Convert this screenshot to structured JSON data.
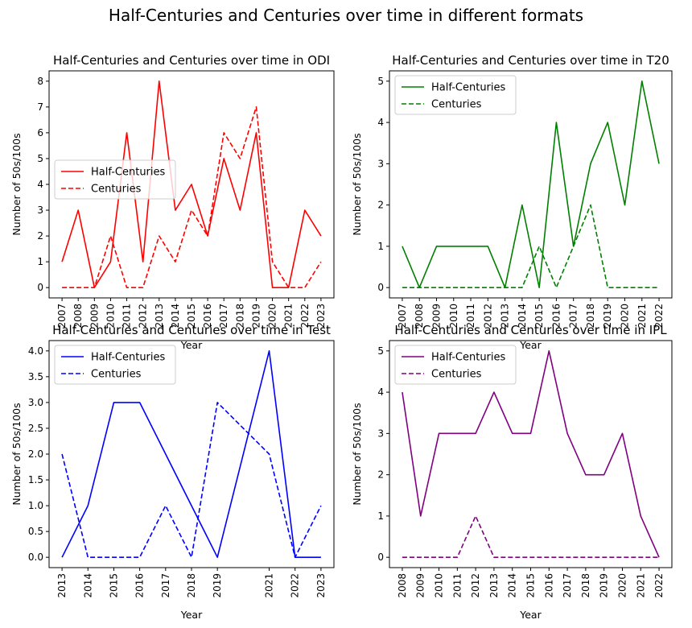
{
  "figure": {
    "suptitle": "Half-Centuries and Centuries over time in different formats"
  },
  "chart_data": [
    {
      "type": "line",
      "title": "Half-Centuries and Centuries over time in ODI",
      "xlabel": "Year",
      "ylabel": "Number of 50s/100s",
      "color": "#ff0000",
      "x": [
        "2007",
        "2008",
        "2009",
        "2010",
        "2011",
        "2012",
        "2013",
        "2014",
        "2015",
        "2016",
        "2017",
        "2018",
        "2019",
        "2020",
        "2021",
        "2022",
        "2023"
      ],
      "series": [
        {
          "name": "Half-Centuries",
          "style": "solid",
          "values": [
            1,
            3,
            0,
            1,
            6,
            1,
            8,
            3,
            4,
            2,
            5,
            3,
            6,
            0,
            0,
            3,
            2
          ]
        },
        {
          "name": "Centuries",
          "style": "dashed",
          "values": [
            0,
            0,
            0,
            2,
            0,
            0,
            2,
            1,
            3,
            2,
            6,
            5,
            7,
            1,
            0,
            0,
            1
          ]
        }
      ],
      "ylim": [
        -0.4,
        8.4
      ],
      "yticks": [
        "0",
        "1",
        "2",
        "3",
        "4",
        "5",
        "6",
        "7",
        "8"
      ],
      "legend": "center-left",
      "grid": false
    },
    {
      "type": "line",
      "title": "Half-Centuries and Centuries over time in T20",
      "xlabel": "Year",
      "ylabel": "Number of 50s/100s",
      "color": "#008000",
      "x": [
        "2007",
        "2008",
        "2009",
        "2010",
        "2011",
        "2012",
        "2013",
        "2014",
        "2015",
        "2016",
        "2017",
        "2018",
        "2019",
        "2020",
        "2021",
        "2022"
      ],
      "series": [
        {
          "name": "Half-Centuries",
          "style": "solid",
          "values": [
            1,
            0,
            1,
            1,
            1,
            1,
            0,
            2,
            0,
            4,
            1,
            3,
            4,
            2,
            5,
            3
          ]
        },
        {
          "name": "Centuries",
          "style": "dashed",
          "values": [
            0,
            0,
            0,
            0,
            0,
            0,
            0,
            0,
            1,
            0,
            1,
            2,
            0,
            0,
            0,
            0
          ]
        }
      ],
      "ylim": [
        -0.25,
        5.25
      ],
      "yticks": [
        "0",
        "1",
        "2",
        "3",
        "4",
        "5"
      ],
      "legend": "top-left",
      "grid": false
    },
    {
      "type": "line",
      "title": "Half-Centuries and Centuries over time in Test",
      "xlabel": "Year",
      "ylabel": "Number of 50s/100s",
      "color": "#0000ff",
      "x": [
        "2013",
        "2014",
        "2015",
        "2016",
        "2017",
        "2018",
        "2019",
        "2021",
        "2022",
        "2023"
      ],
      "x_numeric": [
        2013,
        2014,
        2015,
        2016,
        2017,
        2018,
        2019,
        2021,
        2022,
        2023
      ],
      "series": [
        {
          "name": "Half-Centuries",
          "style": "solid",
          "values": [
            0,
            1,
            3,
            3,
            2,
            1,
            0,
            4,
            0,
            0
          ]
        },
        {
          "name": "Centuries",
          "style": "dashed",
          "values": [
            2,
            0,
            0,
            0,
            1,
            0,
            3,
            2,
            0,
            1
          ]
        }
      ],
      "ylim": [
        -0.2,
        4.2
      ],
      "yticks": [
        "0.0",
        "0.5",
        "1.0",
        "1.5",
        "2.0",
        "2.5",
        "3.0",
        "3.5",
        "4.0"
      ],
      "legend": "top-left",
      "grid": false
    },
    {
      "type": "line",
      "title": "Half-Centuries and Centuries over time in IPL",
      "xlabel": "Year",
      "ylabel": "Number of 50s/100s",
      "color": "#800080",
      "x": [
        "2008",
        "2009",
        "2010",
        "2011",
        "2012",
        "2013",
        "2014",
        "2015",
        "2016",
        "2017",
        "2018",
        "2019",
        "2020",
        "2021",
        "2022"
      ],
      "series": [
        {
          "name": "Half-Centuries",
          "style": "solid",
          "values": [
            4,
            1,
            3,
            3,
            3,
            4,
            3,
            3,
            5,
            3,
            2,
            2,
            3,
            1,
            0
          ]
        },
        {
          "name": "Centuries",
          "style": "dashed",
          "values": [
            0,
            0,
            0,
            0,
            1,
            0,
            0,
            0,
            0,
            0,
            0,
            0,
            0,
            0,
            0
          ]
        }
      ],
      "ylim": [
        -0.25,
        5.25
      ],
      "yticks": [
        "0",
        "1",
        "2",
        "3",
        "4",
        "5"
      ],
      "legend": "top-left",
      "grid": false
    }
  ]
}
